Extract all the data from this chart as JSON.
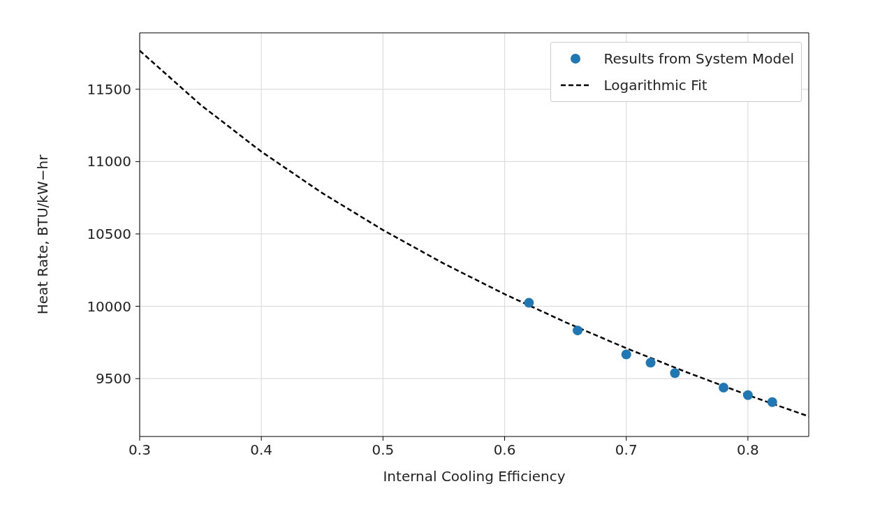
{
  "chart_data": {
    "type": "scatter",
    "xlabel": "Internal Cooling Efficiency",
    "ylabel": "Heat Rate, BTU/kW−hr",
    "xlim": [
      0.3,
      0.85
    ],
    "xticks": [
      {
        "value": 0.3,
        "label": "0.3"
      },
      {
        "value": 0.4,
        "label": "0.4"
      },
      {
        "value": 0.5,
        "label": "0.5"
      },
      {
        "value": 0.6,
        "label": "0.6"
      },
      {
        "value": 0.7,
        "label": "0.7"
      },
      {
        "value": 0.8,
        "label": "0.8"
      }
    ],
    "ylim": [
      9100,
      11890
    ],
    "yticks": [
      9500,
      10000,
      10500,
      11000,
      11500
    ],
    "grid": true,
    "legend": "top right",
    "series": [
      {
        "name": "Results from System Model",
        "marker": "circle",
        "color": "#1f77b4",
        "x": [
          0.62,
          0.66,
          0.7,
          0.72,
          0.74,
          0.78,
          0.8,
          0.82
        ],
        "values": [
          10024,
          9833,
          9667,
          9610,
          9538,
          9438,
          9386,
          9338
        ]
      },
      {
        "name": "Logarithmic Fit",
        "type": "line",
        "marker": "none",
        "line_style": "dashed",
        "color": "#000000",
        "x": [
          0.3,
          0.35,
          0.4,
          0.45,
          0.5,
          0.55,
          0.6,
          0.65,
          0.7,
          0.75,
          0.8,
          0.85
        ],
        "values": [
          11767,
          11393,
          11069,
          10783,
          10527,
          10295,
          10084,
          9890,
          9710,
          9543,
          9386,
          9239
        ]
      }
    ]
  }
}
